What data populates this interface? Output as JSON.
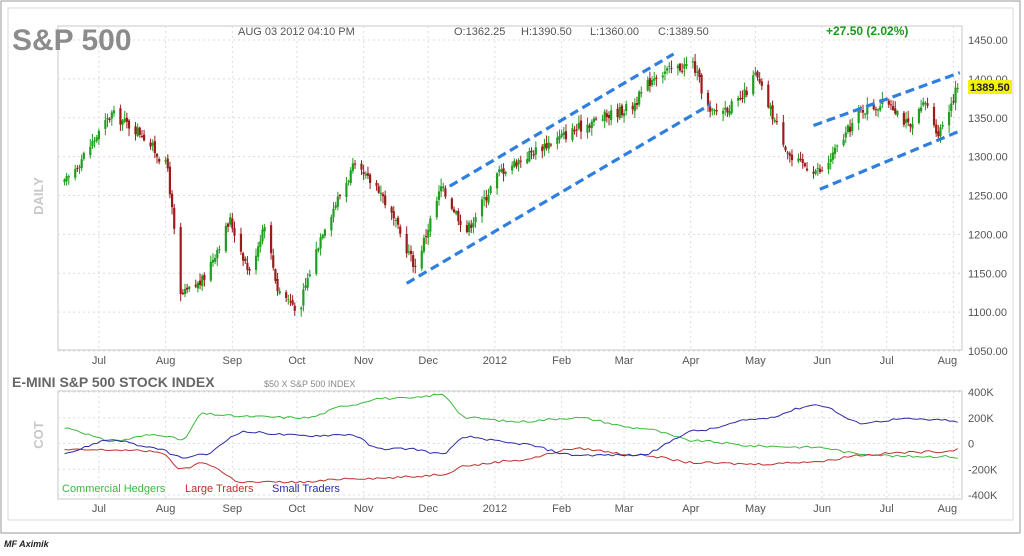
{
  "header": {
    "symbol": "S&P 500",
    "datetime": "AUG 03 2012 04:10 PM",
    "open": "O:1362.25",
    "high": "H:1390.50",
    "low": "L:1360.00",
    "close": "C:1389.50",
    "change": "+27.50 (2.02%)",
    "last_price_tag": "1389.50"
  },
  "price_panel": {
    "side_label": "DAILY",
    "y_ticks": [
      "1450.00",
      "1400.00",
      "1350.00",
      "1300.00",
      "1250.00",
      "1200.00",
      "1150.00",
      "1100.00",
      "1050.00"
    ]
  },
  "x_ticks": [
    "Jul",
    "Aug",
    "Sep",
    "Oct",
    "Nov",
    "Dec",
    "2012",
    "Feb",
    "Mar",
    "Apr",
    "May",
    "Jun",
    "Jul",
    "Aug"
  ],
  "cot_panel": {
    "title": "E-MINI S&P 500 STOCK INDEX",
    "subtitle": "$50 X S&P 500 INDEX",
    "side_label": "COT",
    "y_ticks": [
      "400K",
      "200K",
      "0",
      "-200K",
      "-400K"
    ],
    "legend": [
      {
        "label": "Commercial Hedgers",
        "color": "#3db83d"
      },
      {
        "label": "Large Traders",
        "color": "#c03030"
      },
      {
        "label": "Small Traders",
        "color": "#2a2aa8"
      }
    ]
  },
  "footer": {
    "credit": "MF Aximik"
  },
  "colors": {
    "up_candle": "#1f9e1f",
    "down_candle": "#9b1b1b",
    "channel": "#2e7fe0",
    "change_text": "#1a9a1a",
    "price_tag": "#f2f20a"
  },
  "chart_data": [
    {
      "type": "candlestick",
      "title": "S&P 500",
      "ylabel": "DAILY",
      "ylim": [
        1050,
        1450
      ],
      "x": [
        "2011-06-15",
        "2011-07-07",
        "2011-07-21",
        "2011-08-02",
        "2011-08-08",
        "2011-08-18",
        "2011-08-31",
        "2011-09-09",
        "2011-09-16",
        "2011-09-22",
        "2011-10-03",
        "2011-10-04",
        "2011-10-13",
        "2011-10-27",
        "2011-11-08",
        "2011-11-25",
        "2011-12-07",
        "2011-12-19",
        "2012-01-03",
        "2012-01-24",
        "2012-02-15",
        "2012-03-05",
        "2012-03-15",
        "2012-04-02",
        "2012-04-10",
        "2012-04-24",
        "2012-05-01",
        "2012-05-18",
        "2012-06-01",
        "2012-06-19",
        "2012-07-03",
        "2012-07-12",
        "2012-07-19",
        "2012-07-25",
        "2012-08-03"
      ],
      "values": [
        1265,
        1355,
        1330,
        1285,
        1120,
        1140,
        1218,
        1150,
        1216,
        1130,
        1100,
        1125,
        1206,
        1285,
        1260,
        1158,
        1260,
        1205,
        1280,
        1315,
        1345,
        1365,
        1405,
        1420,
        1355,
        1370,
        1405,
        1295,
        1280,
        1360,
        1370,
        1335,
        1370,
        1330,
        1390
      ],
      "channels": [
        {
          "name": "upper",
          "x": [
            "2011-12-11",
            "2012-03-24"
          ],
          "y": [
            1262,
            1432
          ]
        },
        {
          "name": "lower",
          "x": [
            "2011-11-21",
            "2012-04-10"
          ],
          "y": [
            1137,
            1367
          ]
        },
        {
          "name": "upper",
          "x": [
            "2012-05-28",
            "2012-08-04"
          ],
          "y": [
            1340,
            1408
          ]
        },
        {
          "name": "lower",
          "x": [
            "2012-05-31",
            "2012-08-04"
          ],
          "y": [
            1258,
            1333
          ]
        }
      ],
      "last_price": 1389.5,
      "grid": true
    },
    {
      "type": "line",
      "title": "E-MINI S&P 500 STOCK INDEX",
      "ylabel": "COT",
      "ylim": [
        -400000,
        400000
      ],
      "x": [
        "2011-06-15",
        "2011-07-07",
        "2011-07-28",
        "2011-08-09",
        "2011-08-18",
        "2011-09-06",
        "2011-10-05",
        "2011-10-26",
        "2011-11-08",
        "2011-11-22",
        "2011-12-07",
        "2011-12-19",
        "2012-01-11",
        "2012-02-08",
        "2012-03-08",
        "2012-04-04",
        "2012-05-02",
        "2012-05-30",
        "2012-06-19",
        "2012-07-09",
        "2012-07-30",
        "2012-08-03"
      ],
      "series": [
        {
          "name": "Commercial Hedgers",
          "values": [
            120000,
            20000,
            70000,
            30000,
            230000,
            210000,
            200000,
            300000,
            350000,
            350000,
            380000,
            200000,
            170000,
            200000,
            120000,
            20000,
            -20000,
            -30000,
            -80000,
            -100000,
            -100000,
            -110000
          ]
        },
        {
          "name": "Large Traders",
          "values": [
            -50000,
            -50000,
            -60000,
            -200000,
            -150000,
            -300000,
            -300000,
            -270000,
            -270000,
            -260000,
            -240000,
            -170000,
            -130000,
            -40000,
            -90000,
            -150000,
            -160000,
            -140000,
            -90000,
            -70000,
            -60000,
            -40000
          ]
        },
        {
          "name": "Small Traders",
          "values": [
            -70000,
            30000,
            -40000,
            -110000,
            -90000,
            90000,
            60000,
            70000,
            -40000,
            -40000,
            -80000,
            50000,
            0,
            -90000,
            -90000,
            100000,
            190000,
            300000,
            160000,
            190000,
            180000,
            160000
          ]
        }
      ],
      "grid": true
    }
  ]
}
